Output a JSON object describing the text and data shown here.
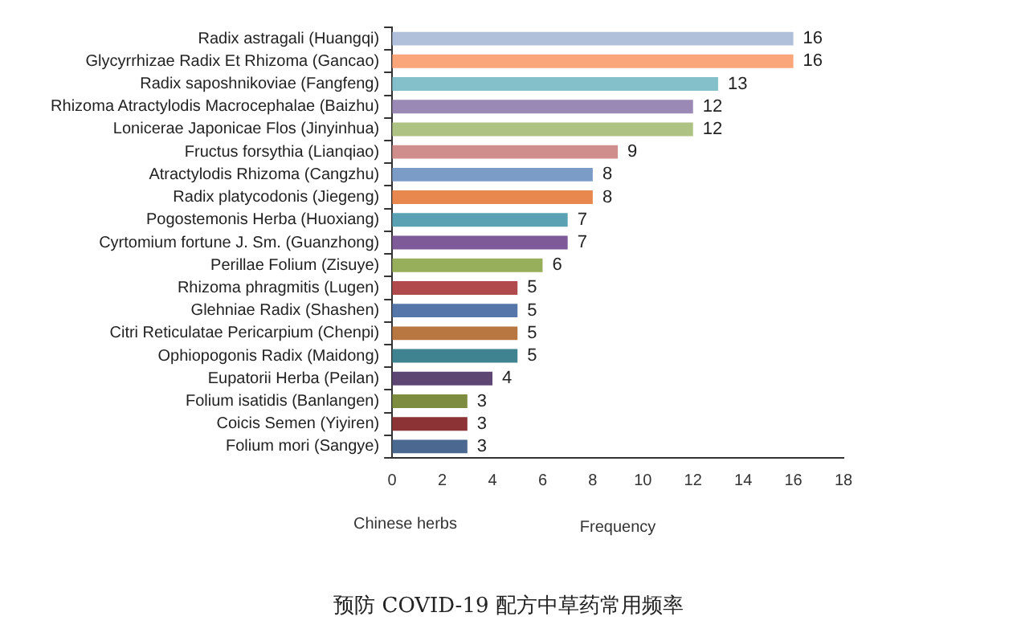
{
  "chart_data": {
    "type": "bar",
    "orientation": "horizontal",
    "xlabel": "Frequency",
    "ylabel": "Chinese herbs",
    "categories": [
      "Radix astragali (Huangqi)",
      "Glycyrrhizae Radix Et Rhizoma (Gancao)",
      "Radix saposhnikoviae (Fangfeng)",
      "Rhizoma Atractylodis Macrocephalae (Baizhu)",
      "Lonicerae Japonicae Flos (Jinyinhua)",
      "Fructus forsythia (Lianqiao)",
      "Atractylodis Rhizoma (Cangzhu)",
      "Radix platycodonis (Jiegeng)",
      "Pogostemonis Herba (Huoxiang)",
      "Cyrtomium fortune J. Sm. (Guanzhong)",
      "Perillae Folium (Zisuye)",
      "Rhizoma phragmitis (Lugen)",
      "Glehniae Radix (Shashen)",
      "Citri Reticulatae Pericarpium (Chenpi)",
      "Ophiopogonis Radix (Maidong)",
      "Eupatorii Herba (Peilan)",
      "Folium isatidis (Banlangen)",
      "Coicis Semen (Yiyiren)",
      "Folium mori (Sangye)"
    ],
    "values": [
      16,
      16,
      13,
      12,
      12,
      9,
      8,
      8,
      7,
      7,
      6,
      5,
      5,
      5,
      5,
      4,
      3,
      3,
      3
    ],
    "colors": [
      "#b0c0da",
      "#fba57b",
      "#84c0c9",
      "#9a88b5",
      "#aec283",
      "#cf8e8b",
      "#7c9cc8",
      "#e8884e",
      "#5aa2b3",
      "#7e5b98",
      "#97ae5a",
      "#b14a4c",
      "#5476a8",
      "#b87640",
      "#3f8391",
      "#5e4673",
      "#7e8c40",
      "#8c3435",
      "#4a6890"
    ],
    "xlim": [
      0,
      18
    ],
    "xticks": [
      0,
      2,
      4,
      6,
      8,
      10,
      12,
      14,
      16,
      18
    ],
    "grid": false,
    "legend": false,
    "data_labels": true,
    "annotations": [
      "预防 COVID-19 配方中草药常用频率"
    ]
  }
}
